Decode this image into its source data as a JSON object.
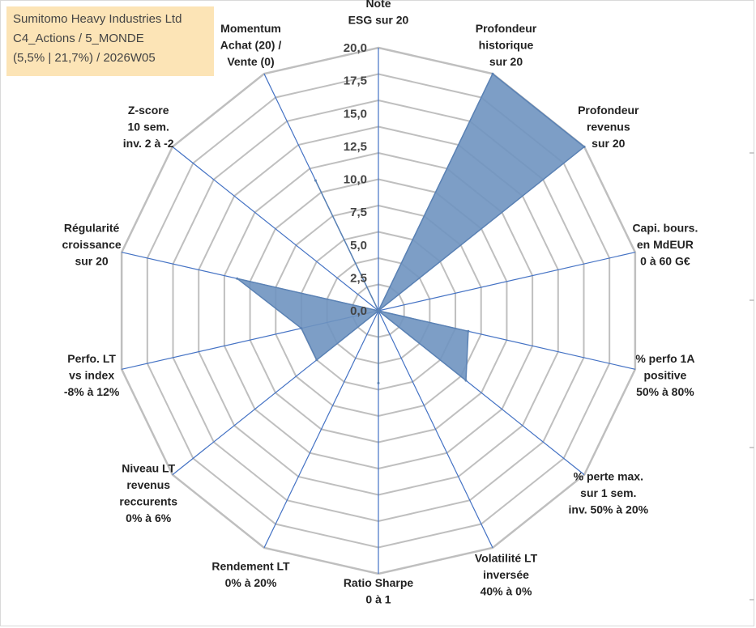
{
  "title_box": {
    "line1": "Sumitomo Heavy Industries Ltd",
    "line2": "C4_Actions / 5_MONDE",
    "line3": "(5,5% | 21,7%) / 2026W05"
  },
  "chart_data": {
    "type": "radar",
    "r_range": [
      0,
      20
    ],
    "grid": true,
    "ticks": [
      "0,0",
      "2,5",
      "5,0",
      "7,5",
      "10,0",
      "12,5",
      "15,0",
      "17,5",
      "20,0"
    ],
    "tick_values": [
      0,
      2.5,
      5,
      7.5,
      10,
      12.5,
      15,
      17.5,
      20
    ],
    "axes": [
      "Note\nESG sur 20",
      "Profondeur\nhistorique\nsur 20",
      "Profondeur\nrevenus\nsur 20",
      "Capi. bours.\nen MdEUR\n0 à 60 G€",
      "% perfo 1A\npositive\n50% à 80%",
      "% perte max.\nsur 1 sem.\ninv. 50% à 20%",
      "Volatilité LT\ninversée\n40% à 0%",
      "Ratio Sharpe\n0 à 1",
      "Rendement LT\n0% à 20%",
      "Niveau LT\nrevenus\nreccurents\n0% à 6%",
      "Perfo. LT\nvs index\n-8% à 12%",
      "Régularité\ncroissance\nsur 20",
      "Z-score\n10 sem.\ninv. 2 à -2",
      "Momentum\nAchat (20) /\nVente (0)"
    ],
    "values": [
      0,
      20,
      20,
      0,
      7,
      8.5,
      0,
      5.5,
      0,
      6,
      6,
      11,
      0,
      11
    ],
    "series_color": "#5b82b4",
    "fill_color": "#6f93c0",
    "grid_color": "#bfbfbf",
    "spoke_color": "#4472c4"
  }
}
